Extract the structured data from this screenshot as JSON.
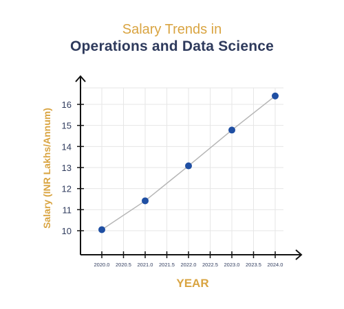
{
  "chart_data": {
    "type": "line",
    "title_line1": "Salary Trends in",
    "title_line2": "Operations and Data Science",
    "xlabel": "YEAR",
    "ylabel": "Salary (INR Lakhs/Annum)",
    "x": [
      2020.0,
      2021.0,
      2022.0,
      2023.0,
      2024.0
    ],
    "series": [
      {
        "values": [
          10.05,
          11.42,
          13.08,
          14.78,
          16.4
        ]
      }
    ],
    "xticks": [
      "2020.0",
      "2020.5",
      "2021.0",
      "2021.5",
      "2022.0",
      "2022.5",
      "2023.0",
      "2023.5",
      "2024.0"
    ],
    "yticks": [
      "10",
      "11",
      "12",
      "13",
      "14",
      "15",
      "16"
    ],
    "xlim": [
      2020.0,
      2024.0
    ],
    "ylim": [
      10,
      16
    ],
    "grid": true,
    "colors": {
      "title_accent": "#d9a441",
      "title_main": "#2e3a5c",
      "marker": "#1f4fa3",
      "line": "#b5b5b5",
      "tick_text": "#2e3a5c",
      "grid": "#e6e6e6"
    }
  }
}
